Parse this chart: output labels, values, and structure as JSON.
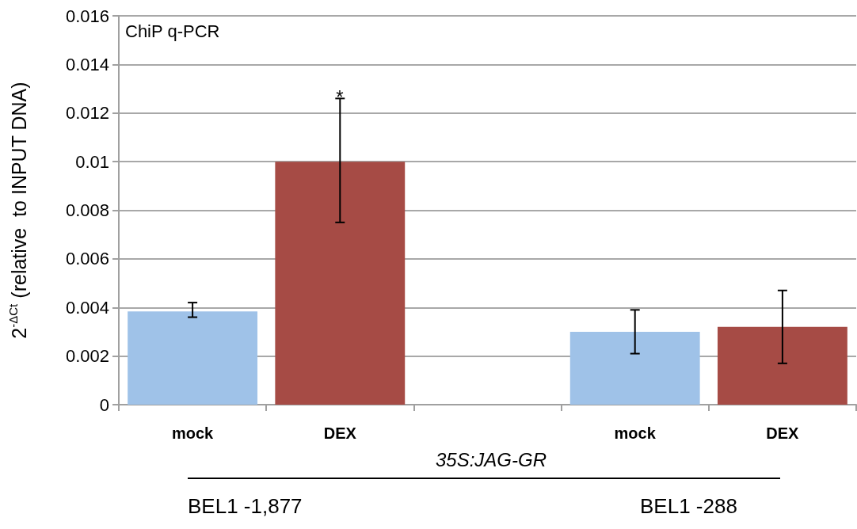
{
  "chart_data": {
    "type": "bar",
    "ylabel": "2$^{-ΔCt}$ (relative  to INPUT DNA)",
    "categories": [
      "mock",
      "DEX",
      null,
      "mock",
      "DEX"
    ],
    "values": [
      0.00384,
      0.01,
      null,
      0.003,
      0.0032
    ],
    "colors": [
      "#9fc2e8",
      "#a64b45",
      null,
      "#9fc2e8",
      "#a64b45"
    ],
    "errors": [
      [
        0.0036,
        0.0042
      ],
      [
        0.0075,
        0.0126
      ],
      null,
      [
        0.0021,
        0.0039
      ],
      [
        0.0017,
        0.0047
      ]
    ],
    "ylim": [
      0,
      0.016
    ],
    "yticks": [
      0,
      0.002,
      0.004,
      0.006,
      0.008,
      0.01,
      0.012,
      0.014,
      0.016
    ],
    "grid": "y",
    "annotations": [
      "ChiP q-PCR",
      "*",
      "35S:JAG-GR",
      "BEL1 -1,877",
      "BEL1 -288"
    ]
  }
}
